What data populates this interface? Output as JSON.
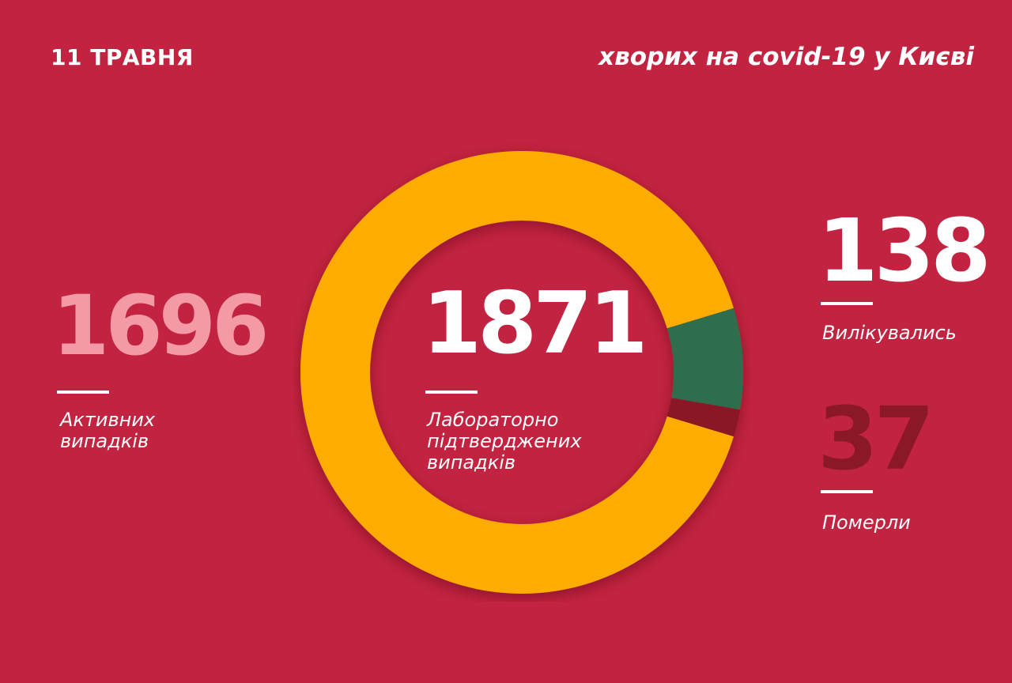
{
  "date": "11 ТРАВНЯ",
  "title": "хворих на covid-19 у Києві",
  "stats": {
    "active": {
      "value": "1696",
      "label_line1": "Активних",
      "label_line2": "випадків"
    },
    "total": {
      "value": "1871",
      "label_line1": "Лабораторно",
      "label_line2": "підтверджених",
      "label_line3": "випадків"
    },
    "recovered": {
      "value": "138",
      "label": "Вилікувались"
    },
    "deaths": {
      "value": "37",
      "label": "Померли"
    }
  },
  "colors": {
    "background": "#c12340",
    "active": "#ffac00",
    "recovered": "#2d6e4e",
    "deaths": "#8b1826",
    "active_number": "#f49aa6",
    "deaths_number": "#8b1826"
  },
  "chart_data": {
    "type": "pie",
    "categories": [
      "Активних випадків",
      "Вилікувались",
      "Померли"
    ],
    "values": [
      1696,
      138,
      37
    ],
    "total": 1871,
    "colors": [
      "#ffac00",
      "#2d6e4e",
      "#8b1826"
    ]
  }
}
